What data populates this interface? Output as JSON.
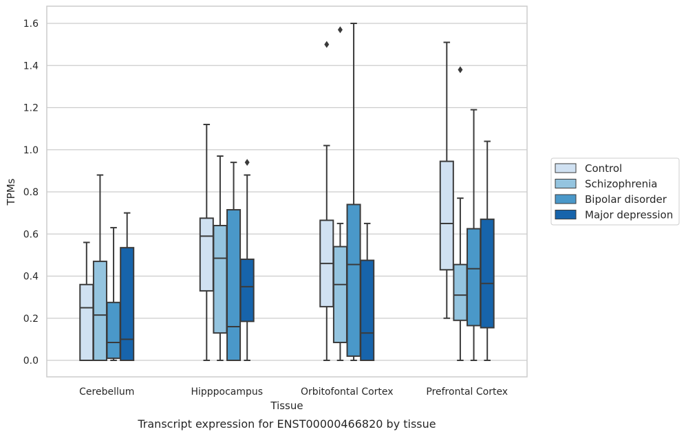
{
  "caption": "Transcript expression for ENST00000466820 by tissue",
  "chart_data": {
    "type": "box",
    "xlabel": "Tissue",
    "ylabel": "TPMs",
    "ylim": [
      -0.08,
      1.68
    ],
    "yticks": [
      "0.0",
      "0.2",
      "0.4",
      "0.6",
      "0.8",
      "1.0",
      "1.2",
      "1.4",
      "1.6"
    ],
    "grid": true,
    "legend_position": "right",
    "categories": [
      "Cerebellum",
      "Hipppocampus",
      "Orbitofontal Cortex",
      "Prefrontal Cortex"
    ],
    "series": [
      {
        "name": "Control",
        "color": "#d0e1f2",
        "boxes": [
          {
            "min": 0.0,
            "q1": 0.0,
            "median": 0.25,
            "q3": 0.36,
            "max": 0.56,
            "outliers": []
          },
          {
            "min": 0.0,
            "q1": 0.33,
            "median": 0.59,
            "q3": 0.675,
            "max": 1.12,
            "outliers": []
          },
          {
            "min": 0.0,
            "q1": 0.255,
            "median": 0.46,
            "q3": 0.665,
            "max": 1.02,
            "outliers": [
              1.5
            ]
          },
          {
            "min": 0.2,
            "q1": 0.43,
            "median": 0.65,
            "q3": 0.945,
            "max": 1.51,
            "outliers": []
          }
        ]
      },
      {
        "name": "Schizophrenia",
        "color": "#94c4df",
        "boxes": [
          {
            "min": 0.0,
            "q1": 0.0,
            "median": 0.215,
            "q3": 0.47,
            "max": 0.88,
            "outliers": []
          },
          {
            "min": 0.0,
            "q1": 0.13,
            "median": 0.485,
            "q3": 0.64,
            "max": 0.97,
            "outliers": []
          },
          {
            "min": 0.0,
            "q1": 0.085,
            "median": 0.36,
            "q3": 0.54,
            "max": 0.65,
            "outliers": [
              1.57
            ]
          },
          {
            "min": 0.0,
            "q1": 0.19,
            "median": 0.31,
            "q3": 0.455,
            "max": 0.77,
            "outliers": [
              1.38
            ]
          }
        ]
      },
      {
        "name": "Bipolar disorder",
        "color": "#4a98c9",
        "boxes": [
          {
            "min": 0.0,
            "q1": 0.01,
            "median": 0.085,
            "q3": 0.275,
            "max": 0.63,
            "outliers": []
          },
          {
            "min": 0.0,
            "q1": 0.0,
            "median": 0.16,
            "q3": 0.715,
            "max": 0.94,
            "outliers": []
          },
          {
            "min": 0.0,
            "q1": 0.02,
            "median": 0.455,
            "q3": 0.74,
            "max": 1.6,
            "outliers": []
          },
          {
            "min": 0.0,
            "q1": 0.165,
            "median": 0.435,
            "q3": 0.625,
            "max": 1.19,
            "outliers": []
          }
        ]
      },
      {
        "name": "Major depression",
        "color": "#1764ab",
        "boxes": [
          {
            "min": 0.0,
            "q1": 0.0,
            "median": 0.1,
            "q3": 0.535,
            "max": 0.7,
            "outliers": []
          },
          {
            "min": 0.0,
            "q1": 0.185,
            "median": 0.35,
            "q3": 0.48,
            "max": 0.88,
            "outliers": [
              0.94
            ]
          },
          {
            "min": 0.0,
            "q1": 0.0,
            "median": 0.13,
            "q3": 0.475,
            "max": 0.65,
            "outliers": []
          },
          {
            "min": 0.0,
            "q1": 0.155,
            "median": 0.365,
            "q3": 0.67,
            "max": 1.04,
            "outliers": []
          }
        ]
      }
    ]
  }
}
